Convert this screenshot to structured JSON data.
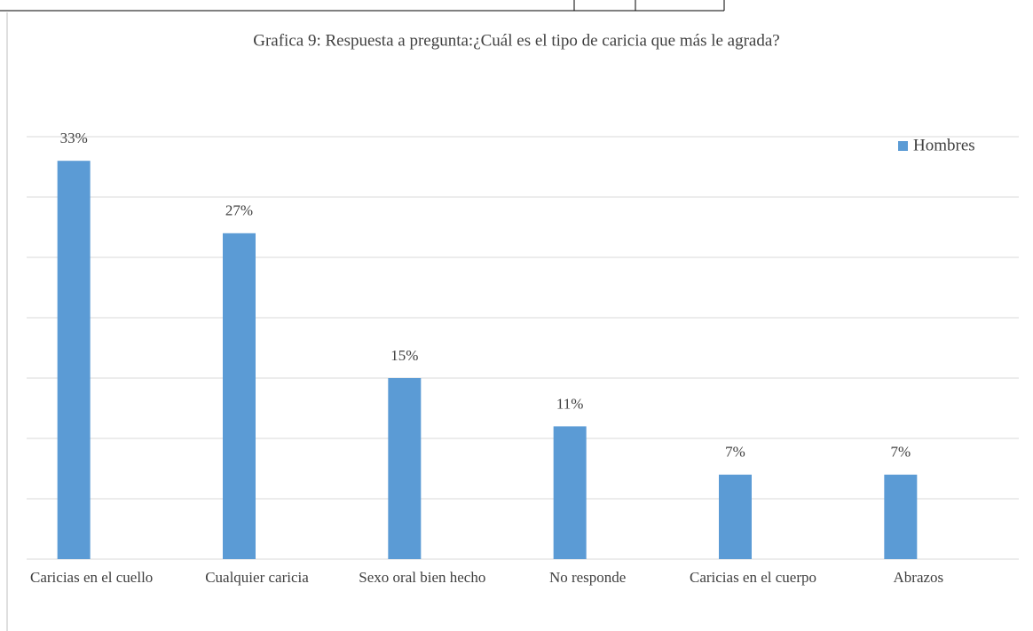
{
  "chart_data": {
    "type": "bar",
    "title": "Grafica 9: Respuesta a pregunta:¿Cuál es el tipo de caricia que más le agrada?",
    "categories": [
      "Caricias en el cuello",
      "Cualquier caricia",
      "Sexo oral bien hecho",
      "No responde",
      "Caricias en el cuerpo",
      "Abrazos"
    ],
    "series": [
      {
        "name": "Hombres",
        "color": "#5b9bd5",
        "values": [
          33,
          27,
          15,
          11,
          7,
          7
        ],
        "value_labels": [
          "33%",
          "27%",
          "15%",
          "11%",
          "7%",
          "7%"
        ]
      }
    ],
    "ylim": [
      0,
      35
    ],
    "yticks": [
      0,
      5,
      10,
      15,
      20,
      25,
      30,
      35
    ],
    "grid": true,
    "legend": "top-right"
  }
}
